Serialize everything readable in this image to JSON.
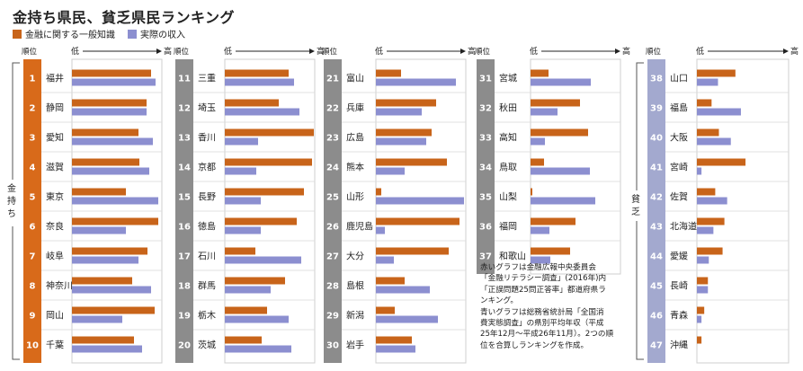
{
  "title": "金持ち県民、貧乏県民ランキング",
  "legend": [
    {
      "label": "金融に関する一般知識",
      "color": "#c8641a"
    },
    {
      "label": "実際の収入",
      "color": "#8c8fd0"
    }
  ],
  "axis": {
    "rank_header": "順位",
    "low": "低",
    "high": "高"
  },
  "group_labels": {
    "rich": "金持ち",
    "poor": "貧乏"
  },
  "colors": {
    "rank_rich": "#d86a1a",
    "rank_mid": "#8c8c8c",
    "rank_poor": "#a3a9cf",
    "panel_bg": "#ffffff",
    "grid": "#bbbbbb"
  },
  "note_lines": [
    "赤いグラフは金融広報中央委員会",
    "「金融リテラシー調査」(2016年)内",
    "「正誤問題25問正答率」都道府県ラ",
    "ンキング。",
    "青いグラフは総務省統計局「全国消",
    "費実態調査」の県別平均年収（平成",
    "25年12月〜平成26年11月）。2つの順",
    "位を合算しランキングを作成。"
  ],
  "chart_data": {
    "type": "bar",
    "orientation": "horizontal",
    "title": "金持ち県民、貧乏県民ランキング",
    "scale_low": "低",
    "scale_high": "高",
    "xlim": [
      0,
      1
    ],
    "series": [
      {
        "name": "金融に関する一般知識",
        "color": "#c8641a"
      },
      {
        "name": "実際の収入",
        "color": "#8c8fd0"
      }
    ],
    "rows": [
      {
        "rank": 1,
        "pref": "福井",
        "knowledge": 0.88,
        "income": 0.93
      },
      {
        "rank": 2,
        "pref": "静岡",
        "knowledge": 0.83,
        "income": 0.83
      },
      {
        "rank": 3,
        "pref": "愛知",
        "knowledge": 0.74,
        "income": 0.9
      },
      {
        "rank": 4,
        "pref": "滋賀",
        "knowledge": 0.75,
        "income": 0.86
      },
      {
        "rank": 5,
        "pref": "東京",
        "knowledge": 0.6,
        "income": 0.96
      },
      {
        "rank": 6,
        "pref": "奈良",
        "knowledge": 0.96,
        "income": 0.6
      },
      {
        "rank": 7,
        "pref": "岐阜",
        "knowledge": 0.84,
        "income": 0.74
      },
      {
        "rank": 8,
        "pref": "神奈川",
        "knowledge": 0.67,
        "income": 0.88
      },
      {
        "rank": 9,
        "pref": "岡山",
        "knowledge": 0.92,
        "income": 0.56
      },
      {
        "rank": 10,
        "pref": "千葉",
        "knowledge": 0.69,
        "income": 0.78
      },
      {
        "rank": 11,
        "pref": "三重",
        "knowledge": 0.71,
        "income": 0.77
      },
      {
        "rank": 12,
        "pref": "埼玉",
        "knowledge": 0.6,
        "income": 0.83
      },
      {
        "rank": 13,
        "pref": "香川",
        "knowledge": 0.99,
        "income": 0.37
      },
      {
        "rank": 14,
        "pref": "京都",
        "knowledge": 0.97,
        "income": 0.35
      },
      {
        "rank": 15,
        "pref": "長野",
        "knowledge": 0.88,
        "income": 0.4
      },
      {
        "rank": 16,
        "pref": "徳島",
        "knowledge": 0.8,
        "income": 0.4
      },
      {
        "rank": 17,
        "pref": "石川",
        "knowledge": 0.34,
        "income": 0.85
      },
      {
        "rank": 18,
        "pref": "群馬",
        "knowledge": 0.67,
        "income": 0.51
      },
      {
        "rank": 19,
        "pref": "栃木",
        "knowledge": 0.47,
        "income": 0.71
      },
      {
        "rank": 20,
        "pref": "茨城",
        "knowledge": 0.41,
        "income": 0.74
      },
      {
        "rank": 21,
        "pref": "富山",
        "knowledge": 0.28,
        "income": 0.89
      },
      {
        "rank": 22,
        "pref": "兵庫",
        "knowledge": 0.67,
        "income": 0.51
      },
      {
        "rank": 23,
        "pref": "広島",
        "knowledge": 0.62,
        "income": 0.56
      },
      {
        "rank": 24,
        "pref": "熊本",
        "knowledge": 0.79,
        "income": 0.32
      },
      {
        "rank": 25,
        "pref": "山形",
        "knowledge": 0.06,
        "income": 0.98
      },
      {
        "rank": 26,
        "pref": "鹿児島",
        "knowledge": 0.93,
        "income": 0.1
      },
      {
        "rank": 27,
        "pref": "大分",
        "knowledge": 0.81,
        "income": 0.2
      },
      {
        "rank": 28,
        "pref": "島根",
        "knowledge": 0.32,
        "income": 0.6
      },
      {
        "rank": 29,
        "pref": "新潟",
        "knowledge": 0.21,
        "income": 0.69
      },
      {
        "rank": 30,
        "pref": "岩手",
        "knowledge": 0.4,
        "income": 0.44
      },
      {
        "rank": 31,
        "pref": "宮城",
        "knowledge": 0.2,
        "income": 0.67
      },
      {
        "rank": 32,
        "pref": "秋田",
        "knowledge": 0.55,
        "income": 0.3
      },
      {
        "rank": 33,
        "pref": "高知",
        "knowledge": 0.64,
        "income": 0.16
      },
      {
        "rank": 34,
        "pref": "鳥取",
        "knowledge": 0.15,
        "income": 0.66
      },
      {
        "rank": 35,
        "pref": "山梨",
        "knowledge": 0.02,
        "income": 0.72
      },
      {
        "rank": 36,
        "pref": "福岡",
        "knowledge": 0.5,
        "income": 0.21
      },
      {
        "rank": 37,
        "pref": "和歌山",
        "knowledge": 0.44,
        "income": 0.22
      },
      {
        "rank": 38,
        "pref": "山口",
        "knowledge": 0.42,
        "income": 0.23
      },
      {
        "rank": 39,
        "pref": "福島",
        "knowledge": 0.16,
        "income": 0.48
      },
      {
        "rank": 40,
        "pref": "大阪",
        "knowledge": 0.24,
        "income": 0.37
      },
      {
        "rank": 41,
        "pref": "宮崎",
        "knowledge": 0.53,
        "income": 0.05
      },
      {
        "rank": 42,
        "pref": "佐賀",
        "knowledge": 0.2,
        "income": 0.33
      },
      {
        "rank": 43,
        "pref": "北海道",
        "knowledge": 0.3,
        "income": 0.18
      },
      {
        "rank": 44,
        "pref": "愛媛",
        "knowledge": 0.28,
        "income": 0.13
      },
      {
        "rank": 45,
        "pref": "長崎",
        "knowledge": 0.12,
        "income": 0.12
      },
      {
        "rank": 46,
        "pref": "青森",
        "knowledge": 0.08,
        "income": 0.05
      },
      {
        "rank": 47,
        "pref": "沖縄",
        "knowledge": 0.05,
        "income": 0.0
      }
    ]
  }
}
